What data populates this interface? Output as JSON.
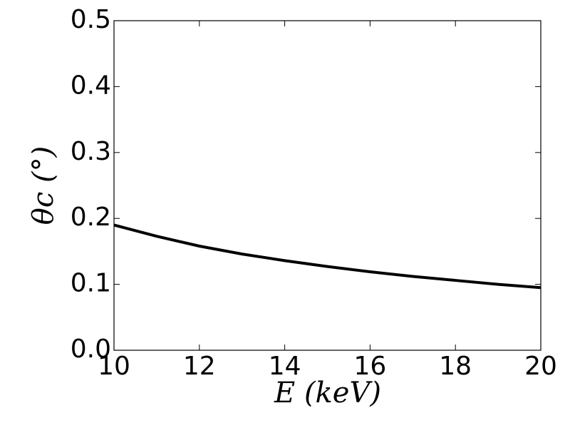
{
  "chart_data": {
    "type": "line",
    "xlabel": "E (keV)",
    "ylabel": "θc (°)",
    "x": [
      10,
      11,
      12,
      13,
      14,
      15,
      16,
      17,
      18,
      19,
      20
    ],
    "series": [
      {
        "color": "#000000",
        "values": [
          0.19,
          0.173,
          0.158,
          0.146,
          0.136,
          0.127,
          0.119,
          0.112,
          0.106,
          0.1,
          0.095
        ]
      }
    ],
    "xlim": [
      10,
      20
    ],
    "xticks": [
      10,
      12,
      14,
      16,
      18,
      20
    ],
    "ylim": [
      0,
      0.5
    ],
    "yticks": [
      {
        "value": 0,
        "label": "0.0"
      },
      0.1,
      0.2,
      0.3,
      0.4,
      0.5
    ],
    "grid": false
  }
}
